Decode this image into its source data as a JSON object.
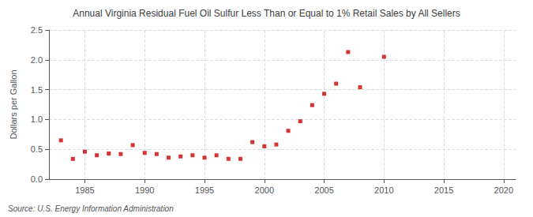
{
  "chart_data": {
    "type": "scatter",
    "title": "Annual Virginia Residual Fuel Oil Sulfur Less Than or Equal to 1% Retail Sales by All Sellers",
    "ylabel": "Dollars per Gallon",
    "source": "Source: U.S. Energy Information Administration",
    "x": [
      1983,
      1984,
      1985,
      1986,
      1987,
      1988,
      1989,
      1990,
      1991,
      1992,
      1993,
      1994,
      1995,
      1996,
      1997,
      1998,
      1999,
      2000,
      2001,
      2002,
      2003,
      2004,
      2005,
      2006,
      2007,
      2008,
      2010
    ],
    "values": [
      0.65,
      0.34,
      0.46,
      0.4,
      0.43,
      0.42,
      0.57,
      0.44,
      0.42,
      0.36,
      0.38,
      0.4,
      0.36,
      0.4,
      0.34,
      0.34,
      0.62,
      0.55,
      0.58,
      0.81,
      0.97,
      1.24,
      1.43,
      1.6,
      2.13,
      1.54,
      2.05
    ],
    "color": "#cc0000",
    "marker": "square",
    "xlim": [
      1982,
      2021
    ],
    "ylim": [
      0.0,
      2.5
    ],
    "xticks": [
      1985,
      1990,
      1995,
      2000,
      2005,
      2010,
      2015,
      2020
    ],
    "yticks": [
      {
        "value": 0.0,
        "label": "0.0"
      },
      0.5,
      {
        "value": 1.0,
        "label": "1.0"
      },
      1.5,
      {
        "value": 2.0,
        "label": "2.0"
      },
      2.5
    ],
    "grid": true
  }
}
